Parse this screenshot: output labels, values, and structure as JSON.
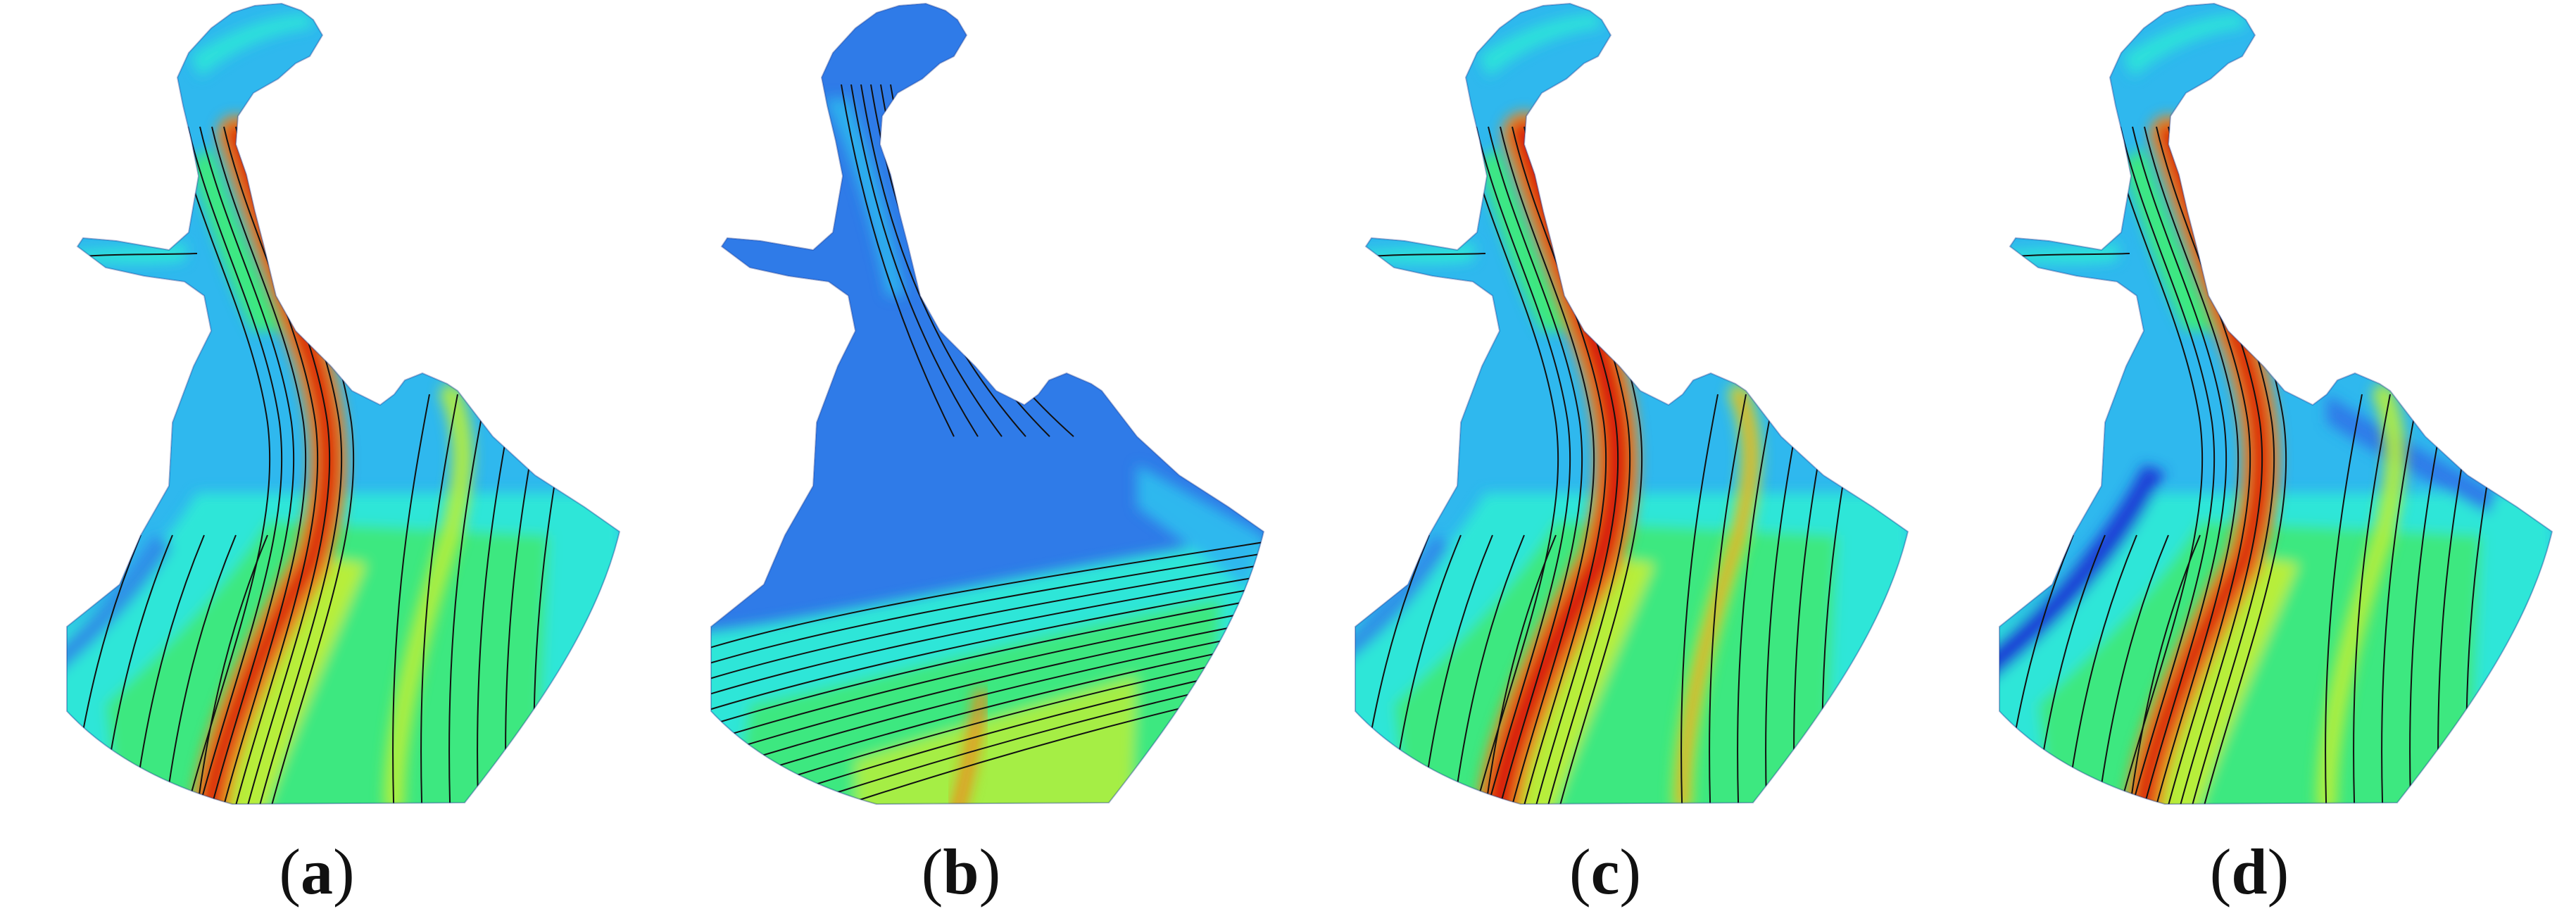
{
  "panels": [
    {
      "label_open": "(",
      "letter": "a",
      "label_close": ")",
      "variant": "a"
    },
    {
      "label_open": "(",
      "letter": "b",
      "label_close": ")",
      "variant": "b"
    },
    {
      "label_open": "(",
      "letter": "c",
      "label_close": ")",
      "variant": "c"
    },
    {
      "label_open": "(",
      "letter": "d",
      "label_close": ")",
      "variant": "d"
    }
  ],
  "colors": {
    "deep_blue": "#1a3fd6",
    "mid_blue": "#2f7be8",
    "light_blue": "#2fb8ee",
    "cyan": "#2ee6d8",
    "green": "#3ee880",
    "yellow_green": "#b7ee3a",
    "orange": "#f08a1c",
    "red": "#d81c10",
    "streamline": "#111111"
  }
}
